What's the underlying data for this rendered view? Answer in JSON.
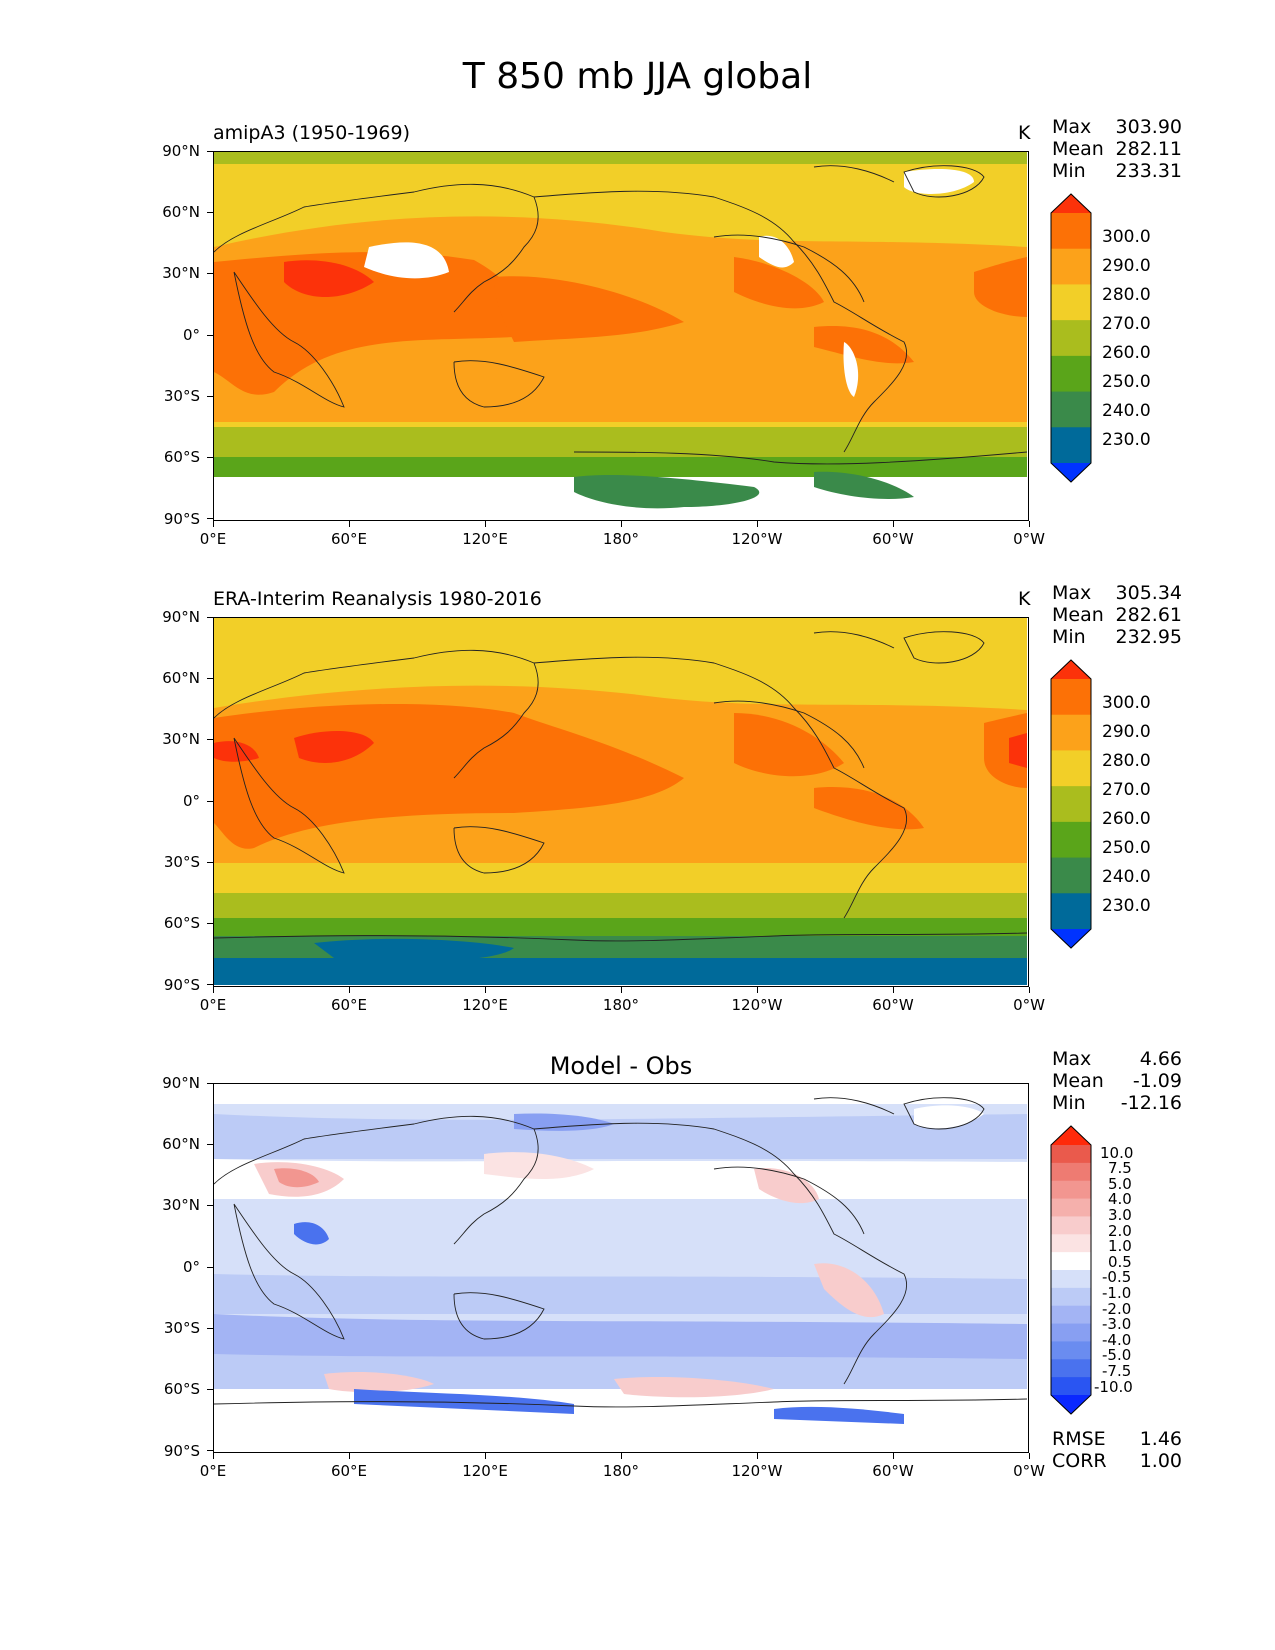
{
  "title": "T 850 mb JJA global",
  "panels": [
    {
      "label": "amipA3 (1950-1969)",
      "units": "K",
      "stats": [
        {
          "k": "Max",
          "v": "303.90"
        },
        {
          "k": "Mean",
          "v": "282.11"
        },
        {
          "k": "Min",
          "v": "233.31"
        }
      ],
      "colorbar": [
        "300.0",
        "290.0",
        "280.0",
        "270.0",
        "260.0",
        "250.0",
        "240.0",
        "230.0"
      ]
    },
    {
      "label": "ERA-Interim Reanalysis 1980-2016",
      "units": "K",
      "stats": [
        {
          "k": "Max",
          "v": "305.34"
        },
        {
          "k": "Mean",
          "v": "282.61"
        },
        {
          "k": "Min",
          "v": "232.95"
        }
      ],
      "colorbar": [
        "300.0",
        "290.0",
        "280.0",
        "270.0",
        "260.0",
        "250.0",
        "240.0",
        "230.0"
      ]
    },
    {
      "label": "Model - Obs",
      "stats": [
        {
          "k": "Max",
          "v": "4.66"
        },
        {
          "k": "Mean",
          "v": "-1.09"
        },
        {
          "k": "Min",
          "v": "-12.16"
        }
      ],
      "colorbar": [
        "10.0",
        "7.5",
        "5.0",
        "4.0",
        "3.0",
        "2.0",
        "1.0",
        "0.5",
        "-0.5",
        "-1.0",
        "-2.0",
        "-3.0",
        "-4.0",
        "-5.0",
        "-7.5",
        "-10.0"
      ],
      "metrics": [
        {
          "k": "RMSE",
          "v": "1.46"
        },
        {
          "k": "CORR",
          "v": "1.00"
        }
      ]
    }
  ],
  "lat_ticks": [
    "90°N",
    "60°N",
    "30°N",
    "0°",
    "30°S",
    "60°S",
    "90°S"
  ],
  "lon_ticks": [
    "0°E",
    "60°E",
    "120°E",
    "180°",
    "120°W",
    "60°W",
    "0°W"
  ],
  "colors": {
    "t_scale": [
      "#0033ff",
      "#006a9a",
      "#3a8a4a",
      "#5aa51a",
      "#aabd1e",
      "#f2cf28",
      "#fca21a",
      "#fc7106",
      "#fc320a"
    ],
    "diff_scale": [
      "#0a28ff",
      "#2a55f2",
      "#4a72ee",
      "#6a8cf0",
      "#889ff2",
      "#a3b4f4",
      "#bccbf6",
      "#d6e0f9",
      "#ffffff",
      "#fbe3e3",
      "#f8cccc",
      "#f5b0ac",
      "#f29690",
      "#ee7b72",
      "#ea5a4c",
      "#ff2a0a"
    ],
    "missing": "#ffffff"
  }
}
